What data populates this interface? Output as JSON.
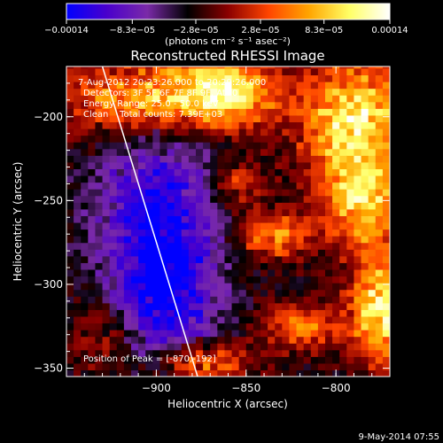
{
  "chart_data": {
    "type": "heatmap",
    "title": "Reconstructed RHESSI Image",
    "xlabel": "Heliocentric X (arcsec)",
    "ylabel": "Heliocentric Y (arcsec)",
    "xlim": [
      -950,
      -770
    ],
    "ylim": [
      -355,
      -170
    ],
    "x_ticks": [
      -900,
      -850,
      -800
    ],
    "x_tick_labels": [
      "−900",
      "−850",
      "−800"
    ],
    "y_ticks": [
      -200,
      -250,
      -300,
      -350
    ],
    "y_tick_labels": [
      "−200",
      "−250",
      "−300",
      "−350"
    ],
    "colorbar": {
      "range": [
        -0.00014,
        0.00014
      ],
      "tick_labels": [
        "−0.00014",
        "−8.3e−05",
        "−2.8e−05",
        "2.8e−05",
        "8.3e−05",
        "0.00014"
      ],
      "tick_values": [
        -0.00014,
        -8.3e-05,
        -2.8e-05,
        2.8e-05,
        8.3e-05,
        0.00014
      ],
      "unit_label": "(photons cm⁻² s⁻¹ asec⁻²)",
      "stops": [
        "#0000ff",
        "#4a00cc",
        "#7a2aa8",
        "#000000",
        "#8b0000",
        "#ff4500",
        "#ffa500",
        "#ffff66",
        "#ffffff"
      ]
    },
    "annotations": [
      "7-Aug-2012 20:23:26.000 to 20:29:26.000",
      "Detectors: 3F 5F 6F 7F 8F 9F, Att 0",
      "Energy Range: 25.0 - 50.0 keV",
      "Clean    Total counts: 7.39E+03"
    ],
    "peak_label": "Position of Peak = [-870,-192]",
    "limb_line": {
      "x": [
        -930,
        -877
      ],
      "y": [
        -170,
        -355
      ],
      "color": "#ffffff"
    },
    "regions": [
      {
        "cx": -905,
        "cy": -190,
        "sx": 30,
        "sy": 18,
        "amp": 0.00013
      },
      {
        "cx": -860,
        "cy": -185,
        "sx": 18,
        "sy": 14,
        "amp": 0.00012
      },
      {
        "cx": -790,
        "cy": -200,
        "sx": 22,
        "sy": 25,
        "amp": 0.00013
      },
      {
        "cx": -785,
        "cy": -250,
        "sx": 16,
        "sy": 20,
        "amp": 0.00011
      },
      {
        "cx": -775,
        "cy": -315,
        "sx": 12,
        "sy": 22,
        "amp": 0.00014
      },
      {
        "cx": -835,
        "cy": -270,
        "sx": 14,
        "sy": 10,
        "amp": 9e-05
      },
      {
        "cx": -820,
        "cy": -325,
        "sx": 14,
        "sy": 10,
        "amp": 8e-05
      },
      {
        "cx": -875,
        "cy": -345,
        "sx": 18,
        "sy": 8,
        "amp": 0.0001
      },
      {
        "cx": -855,
        "cy": -240,
        "sx": 10,
        "sy": 10,
        "amp": 6e-05
      },
      {
        "cx": -900,
        "cy": -240,
        "sx": 25,
        "sy": 40,
        "amp": -8e-05
      },
      {
        "cx": -895,
        "cy": -305,
        "sx": 20,
        "sy": 30,
        "amp": -0.0001
      },
      {
        "cx": -930,
        "cy": -330,
        "sx": 12,
        "sy": 15,
        "amp": 5e-05
      }
    ]
  },
  "footer": {
    "date": "9-May-2014 07:55"
  }
}
